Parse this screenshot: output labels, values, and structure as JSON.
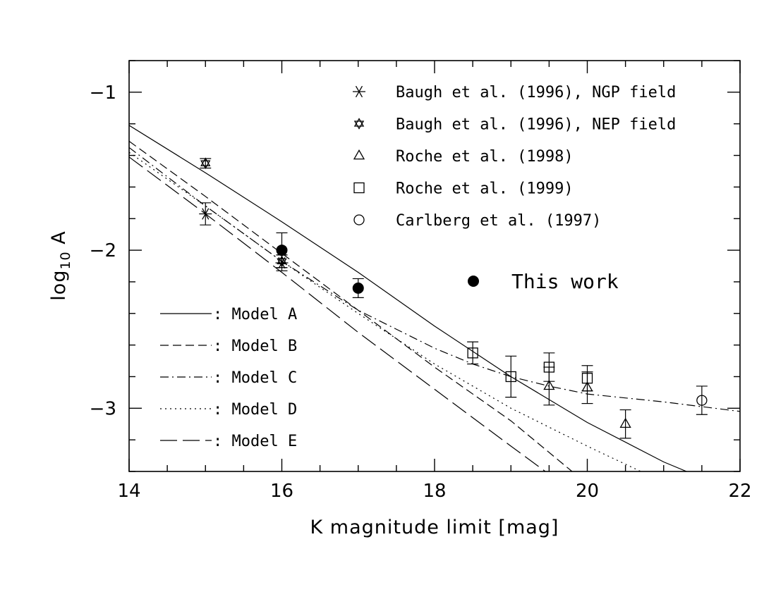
{
  "chart_data": {
    "type": "scatter",
    "xlabel": "K magnitude limit [mag]",
    "ylabel_base": "log",
    "ylabel_sub": "10",
    "ylabel_tail": " A",
    "xlim": [
      14,
      22
    ],
    "ylim": [
      -3.4,
      -0.8
    ],
    "xticks": [
      14,
      16,
      18,
      20,
      22
    ],
    "yticks": [
      -1,
      -2,
      -3
    ],
    "ytick_labels": [
      "−1",
      "−2",
      "−3"
    ],
    "grid": false,
    "series": [
      {
        "name": "Baugh et al. (1996), NGP field",
        "marker": "asterisk",
        "points": [
          {
            "x": 15,
            "y": -1.77,
            "err": 0.07
          },
          {
            "x": 16,
            "y": -2.08,
            "err": 0.05
          }
        ]
      },
      {
        "name": "Baugh et al. (1996), NEP field",
        "marker": "star-of-david",
        "points": [
          {
            "x": 15,
            "y": -1.45,
            "err": 0.03
          },
          {
            "x": 16,
            "y": -2.07,
            "err": 0.04
          }
        ]
      },
      {
        "name": "Roche et al. (1998)",
        "marker": "triangle",
        "points": [
          {
            "x": 19.5,
            "y": -2.86,
            "err": 0.12
          },
          {
            "x": 20,
            "y": -2.87,
            "err": 0.1
          },
          {
            "x": 20.5,
            "y": -3.1,
            "err": 0.09
          }
        ]
      },
      {
        "name": "Roche et al. (1999)",
        "marker": "square",
        "points": [
          {
            "x": 18.5,
            "y": -2.65,
            "err": 0.07
          },
          {
            "x": 19,
            "y": -2.8,
            "err": 0.13
          },
          {
            "x": 19.5,
            "y": -2.74,
            "err": 0.09
          },
          {
            "x": 20,
            "y": -2.81,
            "err": 0.08
          }
        ]
      },
      {
        "name": "Carlberg et al. (1997)",
        "marker": "circle",
        "points": [
          {
            "x": 21.5,
            "y": -2.95,
            "err": 0.09
          }
        ]
      },
      {
        "name": "This work",
        "marker": "filled-circle",
        "points": [
          {
            "x": 16,
            "y": -2.0,
            "err": 0.11
          },
          {
            "x": 17,
            "y": -2.24,
            "err": 0.06
          }
        ]
      }
    ],
    "models": [
      {
        "name": ": Model A",
        "dash": "",
        "points": [
          [
            14,
            -1.21
          ],
          [
            15,
            -1.51
          ],
          [
            16,
            -1.82
          ],
          [
            17,
            -2.14
          ],
          [
            18,
            -2.48
          ],
          [
            19,
            -2.8
          ],
          [
            20,
            -3.09
          ],
          [
            21,
            -3.34
          ],
          [
            21.3,
            -3.4
          ]
        ]
      },
      {
        "name": ": Model B",
        "dash": "12,6",
        "points": [
          [
            14,
            -1.31
          ],
          [
            15,
            -1.66
          ],
          [
            16,
            -2.02
          ],
          [
            17,
            -2.38
          ],
          [
            18,
            -2.74
          ],
          [
            19,
            -3.08
          ],
          [
            19.8,
            -3.4
          ]
        ]
      },
      {
        "name": ": Model C",
        "dash": "12,5,2,5",
        "points": [
          [
            14,
            -1.35
          ],
          [
            15,
            -1.72
          ],
          [
            16,
            -2.07
          ],
          [
            17,
            -2.38
          ],
          [
            18,
            -2.62
          ],
          [
            18.5,
            -2.72
          ],
          [
            19,
            -2.8
          ],
          [
            19.5,
            -2.86
          ],
          [
            20,
            -2.91
          ],
          [
            21,
            -2.96
          ],
          [
            22,
            -3.02
          ]
        ]
      },
      {
        "name": ": Model D",
        "dash": "2,5",
        "points": [
          [
            14,
            -1.38
          ],
          [
            15,
            -1.72
          ],
          [
            16,
            -2.07
          ],
          [
            17,
            -2.4
          ],
          [
            18,
            -2.72
          ],
          [
            19,
            -3.0
          ],
          [
            20,
            -3.24
          ],
          [
            20.7,
            -3.4
          ]
        ]
      },
      {
        "name": ": Model E",
        "dash": "24,8",
        "points": [
          [
            14,
            -1.41
          ],
          [
            15,
            -1.77
          ],
          [
            16,
            -2.14
          ],
          [
            17,
            -2.52
          ],
          [
            18,
            -2.88
          ],
          [
            19,
            -3.24
          ],
          [
            19.45,
            -3.4
          ]
        ]
      }
    ],
    "this_work_label": "This work"
  }
}
